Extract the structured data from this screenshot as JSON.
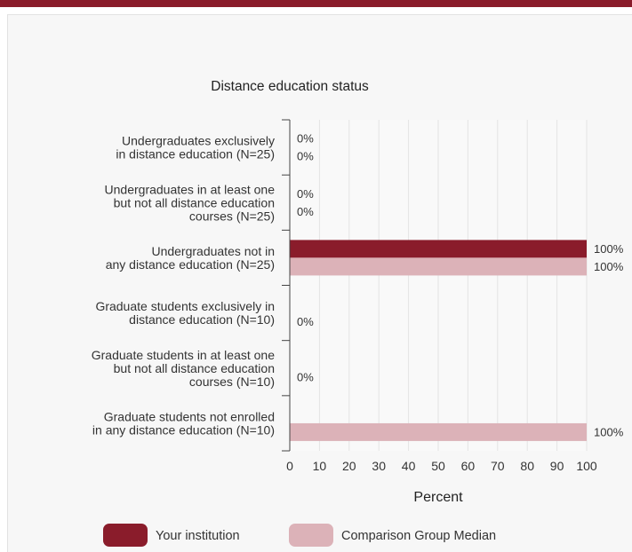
{
  "chart_data": {
    "type": "bar",
    "orientation": "horizontal",
    "title": "Distance education status",
    "xlabel": "Percent",
    "ylabel": "",
    "xlim": [
      0,
      100
    ],
    "xticks": [
      "0",
      "10",
      "20",
      "30",
      "40",
      "50",
      "60",
      "70",
      "80",
      "90",
      "100"
    ],
    "grid": true,
    "legend_position": "bottom",
    "categories": [
      [
        "Undergraduates exclusively",
        "in distance education (N=25)"
      ],
      [
        "Undergraduates in at least one",
        "but not all distance education",
        "courses (N=25)"
      ],
      [
        "Undergraduates not in",
        "any distance education (N=25)"
      ],
      [
        "Graduate students exclusively in",
        "distance education (N=10)"
      ],
      [
        "Graduate students in at least one",
        "but not all distance education",
        "courses (N=10)"
      ],
      [
        "Graduate students not enrolled",
        "in any distance education (N=10)"
      ]
    ],
    "series": [
      {
        "name": "Your institution",
        "color": "#8a1c2b",
        "values": [
          0,
          0,
          100,
          null,
          null,
          null
        ],
        "labels": [
          "0%",
          "0%",
          "100%",
          "",
          "",
          ""
        ]
      },
      {
        "name": "Comparison Group Median",
        "color": "#dcb2b8",
        "values": [
          0,
          0,
          100,
          0,
          0,
          100
        ],
        "labels": [
          "0%",
          "0%",
          "100%",
          "0%",
          "0%",
          "100%"
        ]
      }
    ]
  }
}
